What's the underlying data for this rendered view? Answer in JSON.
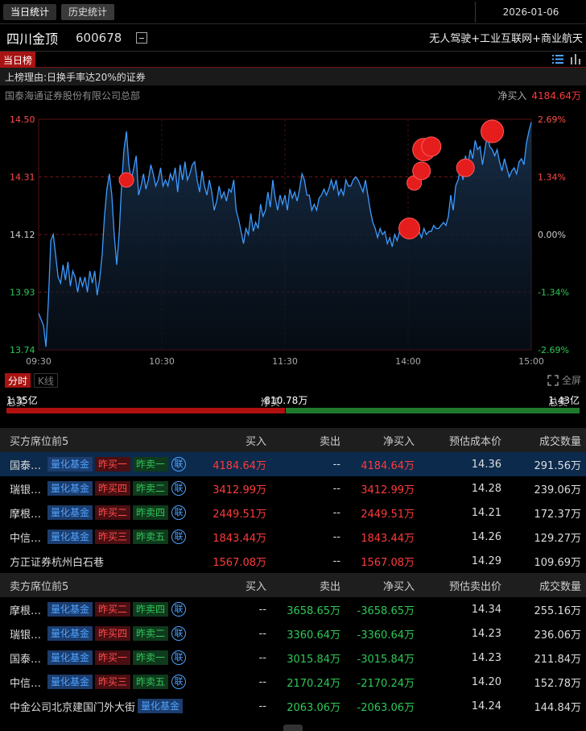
{
  "top_tabs": {
    "today": "当日统计",
    "history": "历史统计"
  },
  "date": "2026-01-06",
  "stock": {
    "name": "四川金顶",
    "code": "600678",
    "concepts": "无人驾驶+工业互联网+商业航天"
  },
  "board_tag": "当日榜",
  "reason": "上榜理由:日换手率达20%的证券",
  "seat": {
    "name": "国泰海通证券股份有限公司总部",
    "netbuy_label": "净买入",
    "netbuy_value": "4184.64万"
  },
  "chart_data": {
    "type": "line",
    "y_labels": [
      "14.50",
      "14.31",
      "14.12",
      "13.93",
      "13.74"
    ],
    "pct_labels": [
      "2.69%",
      "1.34%",
      "0.00%",
      "-1.34%",
      "-2.69%"
    ],
    "x_labels": [
      "09:30",
      "10:30",
      "11:30",
      "14:00",
      "15:00"
    ],
    "ylim": [
      13.74,
      14.5
    ],
    "prev_close": 14.12,
    "prices": [
      13.86,
      13.84,
      13.82,
      13.75,
      13.9,
      14.1,
      14.12,
      14.05,
      13.98,
      13.96,
      14.02,
      13.97,
      14.03,
      13.95,
      14.0,
      13.98,
      13.93,
      13.98,
      13.95,
      13.98,
      13.93,
      14.0,
      13.96,
      14.0,
      13.92,
      13.97,
      14.05,
      14.18,
      14.27,
      14.32,
      14.25,
      14.12,
      14.02,
      14.12,
      14.28,
      14.4,
      14.46,
      14.35,
      14.3,
      14.34,
      14.38,
      14.25,
      14.28,
      14.32,
      14.27,
      14.3,
      14.35,
      14.32,
      14.28,
      14.3,
      14.34,
      14.28,
      14.3,
      14.28,
      14.32,
      14.3,
      14.34,
      14.26,
      14.35,
      14.3,
      14.36,
      14.3,
      14.32,
      14.35,
      14.36,
      14.3,
      14.26,
      14.33,
      14.28,
      14.25,
      14.3,
      14.26,
      14.2,
      14.23,
      14.28,
      14.24,
      14.26,
      14.23,
      14.27,
      14.26,
      14.3,
      14.2,
      14.17,
      14.13,
      14.09,
      14.14,
      14.12,
      14.19,
      14.13,
      14.16,
      14.14,
      14.22,
      14.18,
      14.2,
      14.26,
      14.21,
      14.3,
      14.24,
      14.2,
      14.25,
      14.22,
      14.25,
      14.2,
      14.27,
      14.24,
      14.26,
      14.23,
      14.27,
      14.32,
      14.3,
      14.25,
      14.25,
      14.2,
      14.22,
      14.2,
      14.24,
      14.25,
      14.27,
      14.25,
      14.27,
      14.3,
      14.27,
      14.3,
      14.25,
      14.27,
      14.25,
      14.3,
      14.28,
      14.28,
      14.3,
      14.31,
      14.3,
      14.28,
      14.26,
      14.3,
      14.25,
      14.2,
      14.16,
      14.14,
      14.11,
      14.14,
      14.12,
      14.13,
      14.09,
      14.11,
      14.08,
      14.12,
      14.1,
      14.13,
      14.12,
      14.15,
      14.13,
      14.17,
      14.14,
      14.16,
      14.13,
      14.13,
      14.11,
      14.14,
      14.12,
      14.13,
      14.13,
      14.15,
      14.14,
      14.14,
      14.15,
      14.16,
      14.15,
      14.18,
      14.25,
      14.2,
      14.28,
      14.3,
      14.34,
      14.3,
      14.38,
      14.35,
      14.4,
      14.37,
      14.43,
      14.4,
      14.41,
      14.35,
      14.4,
      14.45,
      14.41,
      14.4,
      14.38,
      14.4,
      14.36,
      14.33,
      14.37,
      14.34,
      14.31,
      14.33,
      14.34,
      14.32,
      14.36,
      14.37,
      14.35,
      14.42,
      14.46,
      14.49
    ],
    "markers": [
      {
        "t": 36,
        "price": 14.3,
        "r": 9
      },
      {
        "t": 152,
        "price": 14.14,
        "r": 13
      },
      {
        "t": 154,
        "price": 14.29,
        "r": 9
      },
      {
        "t": 157,
        "price": 14.33,
        "r": 11
      },
      {
        "t": 158,
        "price": 14.4,
        "r": 14
      },
      {
        "t": 161,
        "price": 14.41,
        "r": 12
      },
      {
        "t": 175,
        "price": 14.34,
        "r": 11
      },
      {
        "t": 186,
        "price": 14.46,
        "r": 14
      }
    ]
  },
  "period_tabs": {
    "intraday": "分时",
    "kline": "K线"
  },
  "fullscreen_label": "全屏",
  "totals": {
    "buy_label": "总买",
    "buy_value": "1.35亿",
    "net_label": "净买",
    "net_value": "-810.78万",
    "sell_label": "总卖",
    "sell_value": "1.43亿"
  },
  "buy_table": {
    "headers": [
      "买方席位前5",
      "买入",
      "卖出",
      "净买入",
      "预估成本价",
      "成交数量"
    ],
    "rows": [
      {
        "name": "国泰海通证券股份有限公司总部",
        "tags": [
          "量化基金",
          "昨买一",
          "昨卖一"
        ],
        "link": "联",
        "buy": "4184.64万",
        "sell": "--",
        "net": "4184.64万",
        "price": "14.36",
        "volume": "291.56万"
      },
      {
        "name": "瑞银证券有限责任公司上海花园石桥路",
        "tags": [
          "量化基金",
          "昨买四",
          "昨卖二"
        ],
        "link": "联",
        "buy": "3412.99万",
        "sell": "--",
        "net": "3412.99万",
        "price": "14.28",
        "volume": "239.06万"
      },
      {
        "name": "摩根大通证券(中国)有限公司上海银城中路",
        "tags": [
          "量化基金",
          "昨买二",
          "昨卖四"
        ],
        "link": "联",
        "buy": "2449.51万",
        "sell": "--",
        "net": "2449.51万",
        "price": "14.21",
        "volume": "172.37万"
      },
      {
        "name": "中信证券股份有限公司上海分公司",
        "tags": [
          "量化基金",
          "昨买三",
          "昨卖五"
        ],
        "link": "联",
        "buy": "1843.44万",
        "sell": "--",
        "net": "1843.44万",
        "price": "14.26",
        "volume": "129.27万"
      },
      {
        "name": "方正证券杭州白石巷",
        "tags": [],
        "link": "",
        "buy": "1567.08万",
        "sell": "--",
        "net": "1567.08万",
        "price": "14.29",
        "volume": "109.69万"
      }
    ]
  },
  "sell_table": {
    "headers": [
      "卖方席位前5",
      "买入",
      "卖出",
      "净买入",
      "预估卖出价",
      "成交数量"
    ],
    "rows": [
      {
        "name": "摩根大通证券(中国)有限公司上海银城中路",
        "tags": [
          "量化基金",
          "昨买二",
          "昨卖四"
        ],
        "link": "联",
        "buy": "--",
        "sell": "3658.65万",
        "net": "-3658.65万",
        "price": "14.34",
        "volume": "255.16万"
      },
      {
        "name": "瑞银证券有限责任公司上海花园石桥路",
        "tags": [
          "量化基金",
          "昨买四",
          "昨卖二"
        ],
        "link": "联",
        "buy": "--",
        "sell": "3360.64万",
        "net": "-3360.64万",
        "price": "14.23",
        "volume": "236.06万"
      },
      {
        "name": "国泰海通证券股份有限公司总部",
        "tags": [
          "量化基金",
          "昨买一",
          "昨卖一"
        ],
        "link": "联",
        "buy": "--",
        "sell": "3015.84万",
        "net": "-3015.84万",
        "price": "14.23",
        "volume": "211.84万"
      },
      {
        "name": "中信证券股份有限公司上海分公司",
        "tags": [
          "量化基金",
          "昨买三",
          "昨卖五"
        ],
        "link": "联",
        "buy": "--",
        "sell": "2170.24万",
        "net": "-2170.24万",
        "price": "14.20",
        "volume": "152.78万"
      },
      {
        "name": "中金公司北京建国门外大街",
        "tags": [
          "量化基金"
        ],
        "link": "",
        "buy": "--",
        "sell": "2063.06万",
        "net": "-2063.06万",
        "price": "14.24",
        "volume": "144.84万"
      }
    ]
  }
}
